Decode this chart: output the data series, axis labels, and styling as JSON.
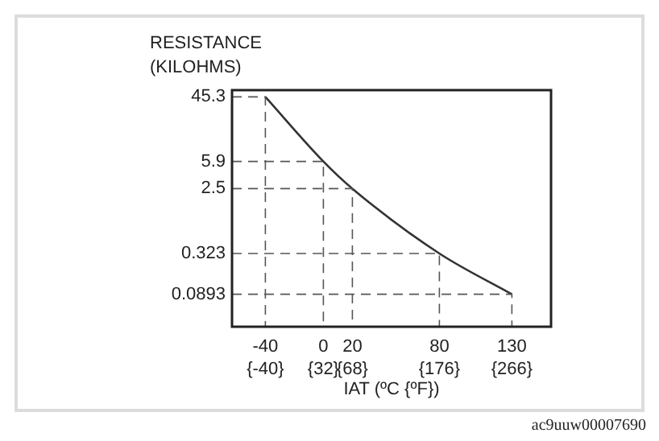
{
  "chart_data": {
    "type": "line",
    "ylabel": "RESISTANCE\n(KILOHMS)",
    "xlabel": "IAT (ºC {ºF})",
    "x": [
      -40,
      0,
      20,
      80,
      130
    ],
    "series": [
      {
        "color": "#333333",
        "values": [
          45.3,
          5.9,
          2.5,
          0.323,
          0.0893
        ]
      },
      {
        "type": "line",
        "color": "#555555",
        "line_style": "dashed",
        "x": [
          -63,
          -40,
          -40
        ],
        "values": [
          45.3,
          45.3,
          0.032
        ]
      },
      {
        "type": "line",
        "color": "#555555",
        "line_style": "dashed",
        "x": [
          -63,
          0,
          0
        ],
        "values": [
          5.9,
          5.9,
          0.032
        ]
      },
      {
        "type": "line",
        "color": "#555555",
        "line_style": "dashed",
        "x": [
          -63,
          20,
          20
        ],
        "values": [
          2.5,
          2.5,
          0.032
        ]
      },
      {
        "type": "line",
        "color": "#555555",
        "line_style": "dashed",
        "x": [
          -63,
          80,
          80
        ],
        "values": [
          0.323,
          0.323,
          0.032
        ]
      },
      {
        "type": "line",
        "color": "#555555",
        "line_style": "dashed",
        "x": [
          -63,
          130,
          130
        ],
        "values": [
          0.0893,
          0.0893,
          0.032
        ]
      }
    ],
    "log": "y",
    "xlim": [
      -63,
      157
    ],
    "ylim": [
      0.032,
      56
    ],
    "xticks": [
      -40,
      0,
      20,
      80,
      130
    ],
    "x2lim": [
      -81.4,
      314.6
    ],
    "x2ticks": [
      {
        "value": -40,
        "label": "{-40}"
      },
      {
        "value": 32,
        "label": "{32}"
      },
      {
        "value": 68,
        "label": "{68}"
      },
      {
        "value": 176,
        "label": "{176}"
      },
      {
        "value": 266,
        "label": "{266}"
      }
    ],
    "yticks": [
      45.3,
      5.9,
      2.5,
      0.323,
      0.0893
    ],
    "legend": false,
    "marker": "none",
    "line_style": "solid",
    "annotations": [
      "ac9uuw00007690"
    ]
  }
}
